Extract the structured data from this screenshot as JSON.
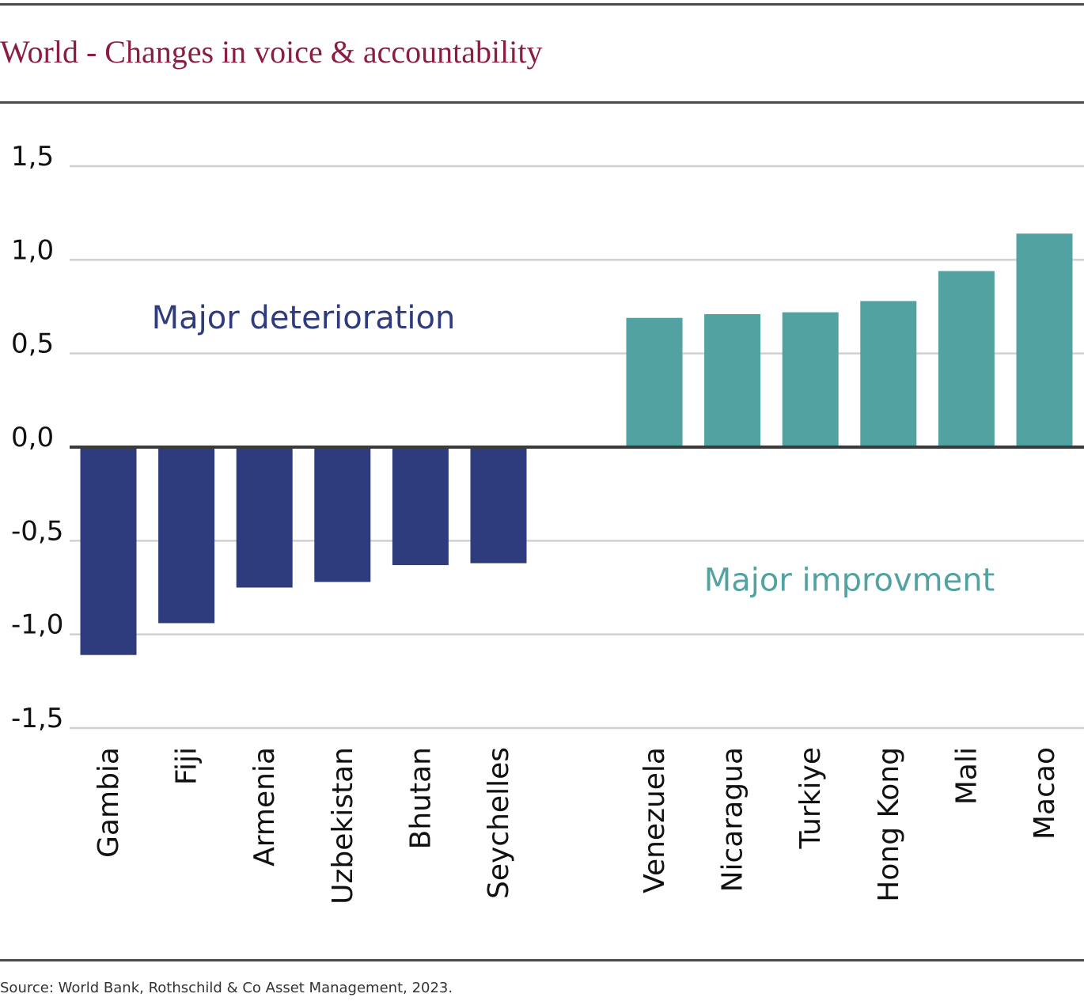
{
  "title": "World - Changes in voice & accountability",
  "source": "Source: World Bank, Rothschild & Co Asset Management, 2023.",
  "colors": {
    "title": "#8b1c44",
    "deterioration": "#2e3c7e",
    "improvement": "#52a2a2",
    "axis": "#3a3a3a",
    "grid": "#d0d0d0"
  },
  "chart_data": {
    "type": "bar",
    "title": "World - Changes in voice & accountability",
    "categories": [
      "Gambia",
      "Fiji",
      "Armenia",
      "Uzbekistan",
      "Bhutan",
      "Seychelles",
      "Venezuela",
      "Nicaragua",
      "Turkiye",
      "Hong Kong",
      "Mali",
      "Macao"
    ],
    "values": [
      -1.11,
      -0.94,
      -0.75,
      -0.72,
      -0.63,
      -0.62,
      0.69,
      0.71,
      0.72,
      0.78,
      0.94,
      1.14
    ],
    "groups": [
      "deterioration",
      "deterioration",
      "deterioration",
      "deterioration",
      "deterioration",
      "deterioration",
      "improvement",
      "improvement",
      "improvement",
      "improvement",
      "improvement",
      "improvement"
    ],
    "ylim": [
      -1.5,
      1.5
    ],
    "yticks": [
      1.5,
      1.0,
      0.5,
      0.0,
      -0.5,
      -1.0,
      -1.5
    ],
    "ytick_labels": [
      "1,5",
      "1,0",
      "0,5",
      "0,0",
      "-0,5",
      "-1,0",
      "-1,5"
    ],
    "grid": true,
    "annotations": [
      {
        "text": "Major deterioration",
        "x": 2.5,
        "y": 0.68,
        "group": "deterioration"
      },
      {
        "text": "Major improvment",
        "x": 8.5,
        "y": -0.72,
        "group": "improvement"
      }
    ]
  }
}
